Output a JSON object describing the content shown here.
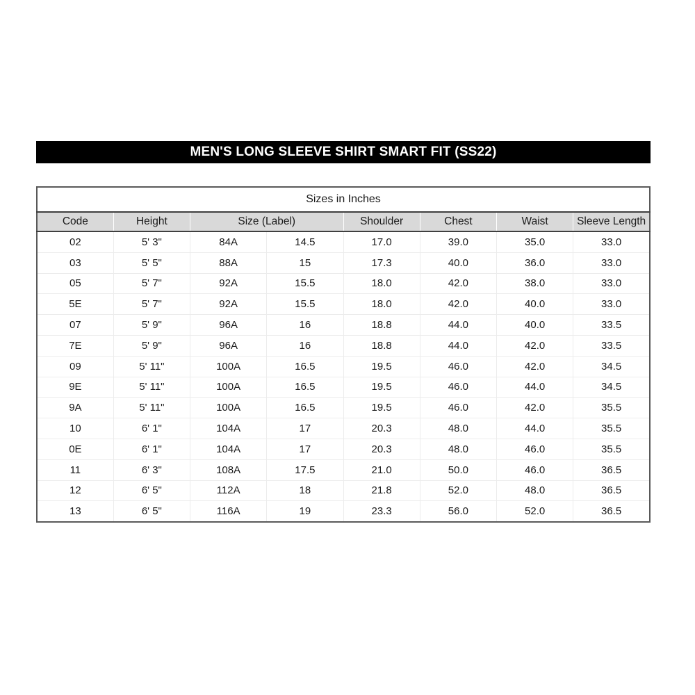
{
  "title_bar": {
    "text": "MEN'S LONG SLEEVE SHIRT SMART FIT (SS22)"
  },
  "table": {
    "caption": "Sizes in Inches",
    "columns": [
      "Code",
      "Height",
      "Size (Label)",
      "Shoulder",
      "Chest",
      "Waist",
      "Sleeve Length"
    ],
    "size_label_colspan": 2,
    "rows": [
      [
        "02",
        "5' 3\"",
        "84A",
        "14.5",
        "17.0",
        "39.0",
        "35.0",
        "33.0"
      ],
      [
        "03",
        "5' 5\"",
        "88A",
        "15",
        "17.3",
        "40.0",
        "36.0",
        "33.0"
      ],
      [
        "05",
        "5' 7\"",
        "92A",
        "15.5",
        "18.0",
        "42.0",
        "38.0",
        "33.0"
      ],
      [
        "5E",
        "5' 7\"",
        "92A",
        "15.5",
        "18.0",
        "42.0",
        "40.0",
        "33.0"
      ],
      [
        "07",
        "5' 9\"",
        "96A",
        "16",
        "18.8",
        "44.0",
        "40.0",
        "33.5"
      ],
      [
        "7E",
        "5' 9\"",
        "96A",
        "16",
        "18.8",
        "44.0",
        "42.0",
        "33.5"
      ],
      [
        "09",
        "5' 11\"",
        "100A",
        "16.5",
        "19.5",
        "46.0",
        "42.0",
        "34.5"
      ],
      [
        "9E",
        "5' 11\"",
        "100A",
        "16.5",
        "19.5",
        "46.0",
        "44.0",
        "34.5"
      ],
      [
        "9A",
        "5' 11\"",
        "100A",
        "16.5",
        "19.5",
        "46.0",
        "42.0",
        "35.5"
      ],
      [
        "10",
        "6' 1\"",
        "104A",
        "17",
        "20.3",
        "48.0",
        "44.0",
        "35.5"
      ],
      [
        "0E",
        "6' 1\"",
        "104A",
        "17",
        "20.3",
        "48.0",
        "46.0",
        "35.5"
      ],
      [
        "11",
        "6' 3\"",
        "108A",
        "17.5",
        "21.0",
        "50.0",
        "46.0",
        "36.5"
      ],
      [
        "12",
        "6' 5\"",
        "112A",
        "18",
        "21.8",
        "52.0",
        "48.0",
        "36.5"
      ],
      [
        "13",
        "6' 5\"",
        "116A",
        "19",
        "23.3",
        "56.0",
        "52.0",
        "36.5"
      ]
    ]
  },
  "colors": {
    "title_bg": "#000000",
    "title_text": "#ffffff",
    "header_bg": "#d9d9d9",
    "dark_border": "#3f3f3f",
    "outer_border": "#595959",
    "light_border": "#ececec",
    "text": "#1a1a1a"
  }
}
